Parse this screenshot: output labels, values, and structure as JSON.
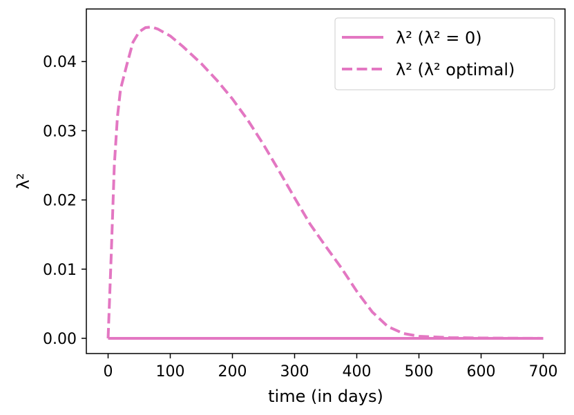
{
  "chart_data": {
    "type": "line",
    "title": "",
    "xlabel": "time (in days)",
    "ylabel": "λ²",
    "xlim": [
      -35,
      735
    ],
    "ylim": [
      -0.0022,
      0.0476
    ],
    "xticks": [
      0,
      100,
      200,
      300,
      400,
      500,
      600,
      700
    ],
    "xtick_labels": [
      "0",
      "100",
      "200",
      "300",
      "400",
      "500",
      "600",
      "700"
    ],
    "yticks": [
      0.0,
      0.01,
      0.02,
      0.03,
      0.04
    ],
    "ytick_labels": [
      "0.00",
      "0.01",
      "0.02",
      "0.03",
      "0.04"
    ],
    "grid": false,
    "legend_position": "top-right",
    "color": "#e377c2",
    "series": [
      {
        "name": "λ² (λ² = 0)",
        "style": "solid",
        "x": [
          0,
          700
        ],
        "y": [
          0.0,
          0.0
        ]
      },
      {
        "name": "λ² (λ² optimal)",
        "style": "dashed",
        "x": [
          0,
          5,
          10,
          15,
          20,
          30,
          40,
          50,
          60,
          70,
          80,
          100,
          120,
          150,
          175,
          200,
          225,
          250,
          275,
          300,
          325,
          350,
          375,
          400,
          425,
          450,
          475,
          500,
          525,
          550,
          600,
          650,
          700
        ],
        "y": [
          0.0,
          0.012,
          0.025,
          0.032,
          0.036,
          0.0395,
          0.0428,
          0.0443,
          0.0449,
          0.045,
          0.0447,
          0.0437,
          0.0422,
          0.0397,
          0.0373,
          0.0346,
          0.0315,
          0.028,
          0.0242,
          0.0203,
          0.0165,
          0.0133,
          0.0102,
          0.0068,
          0.0038,
          0.0017,
          0.0007,
          0.0003,
          0.0002,
          0.0001,
          5e-05,
          2e-05,
          0.0
        ]
      }
    ]
  }
}
